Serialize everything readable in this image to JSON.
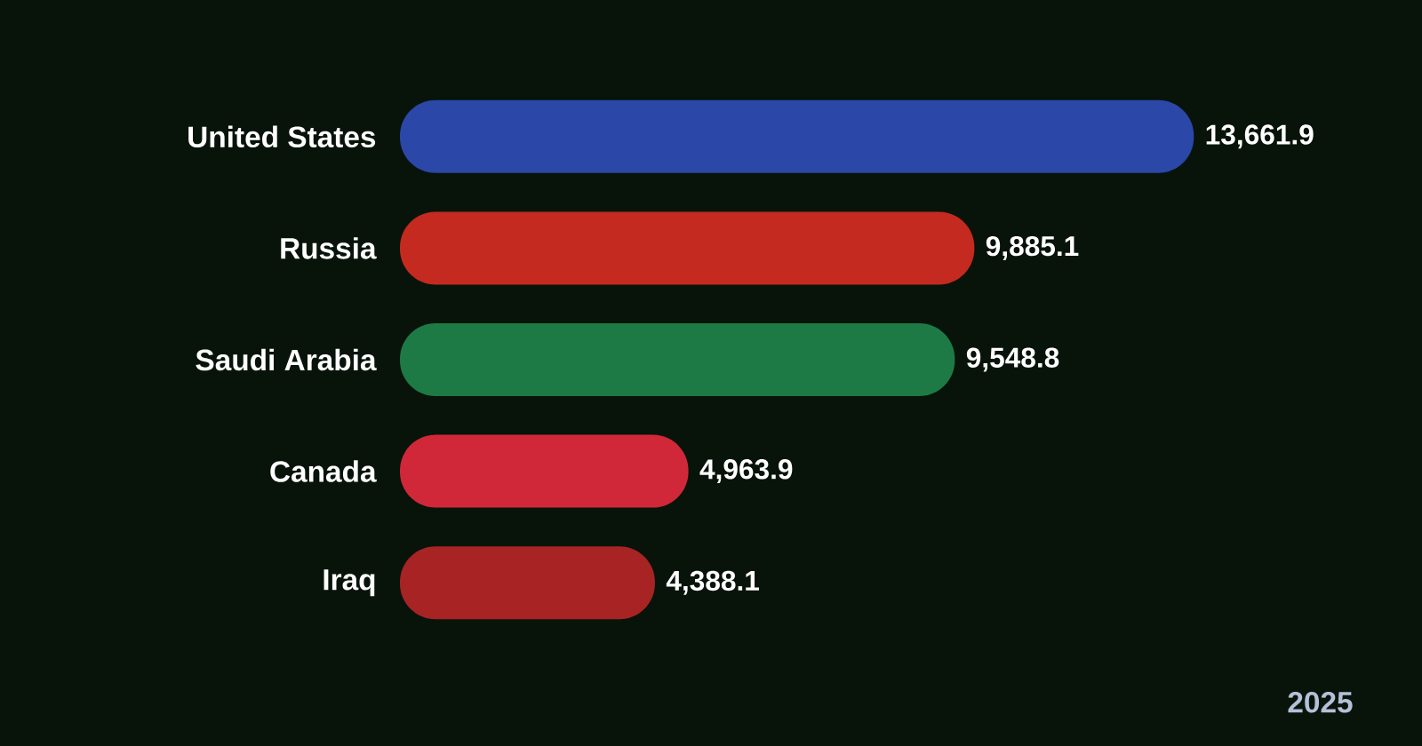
{
  "chart_data": {
    "type": "bar",
    "orientation": "horizontal",
    "categories": [
      "United States",
      "Russia",
      "Saudi Arabia",
      "Canada",
      "Iraq"
    ],
    "values": [
      13661.9,
      9885.1,
      9548.8,
      4963.9,
      4388.1
    ],
    "value_labels": [
      "13,661.9",
      "9,885.1",
      "9,548.8",
      "4,963.9",
      "4,388.1"
    ],
    "colors": [
      "#2b47a8",
      "#c42a1f",
      "#1e7a44",
      "#d02838",
      "#a82424"
    ],
    "tick_labels": "y",
    "annotations": [
      "2025"
    ]
  }
}
